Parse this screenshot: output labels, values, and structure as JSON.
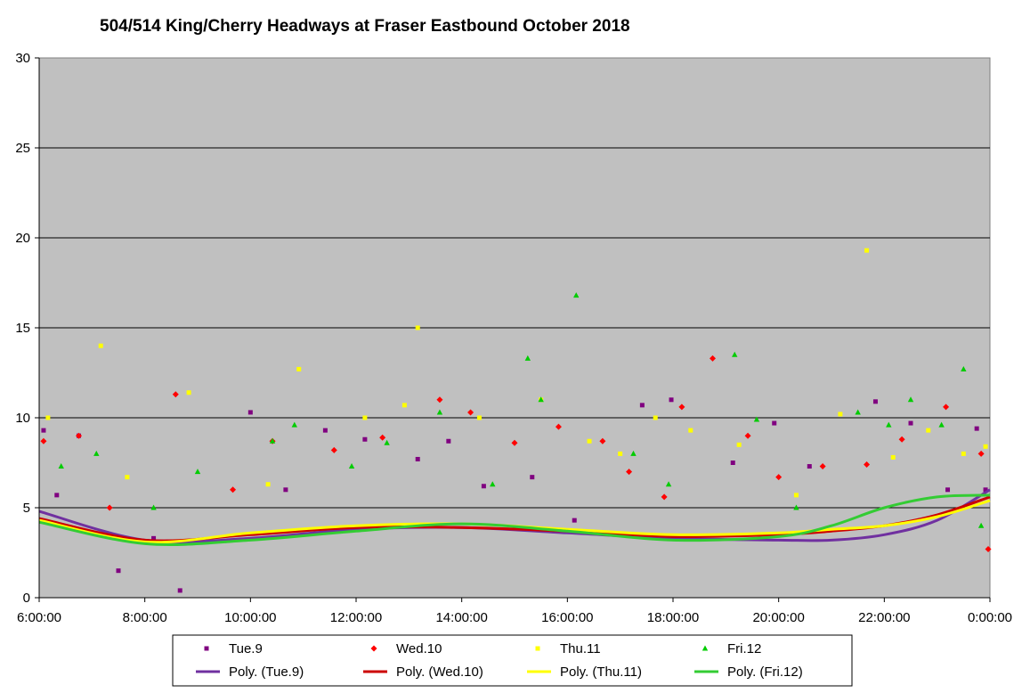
{
  "chart_data": {
    "type": "scatter",
    "title": "504/514 King/Cherry Headways at Fraser Eastbound October 2018",
    "xlabel": "",
    "ylabel": "",
    "ylim": [
      0,
      30
    ],
    "xlim": [
      "6:00:00",
      "0:00:00"
    ],
    "x_ticks": [
      "6:00:00",
      "8:00:00",
      "10:00:00",
      "12:00:00",
      "14:00:00",
      "16:00:00",
      "18:00:00",
      "20:00:00",
      "22:00:00",
      "0:00:00"
    ],
    "y_ticks": [
      "0",
      "5",
      "10",
      "15",
      "20",
      "25",
      "30"
    ],
    "grid": "horizontal",
    "background": "#c0c0c0",
    "legend_position": "bottom",
    "series": [
      {
        "name": "Tue.9",
        "marker": "square",
        "color": "#800080",
        "points": [
          [
            "6:05",
            9.3
          ],
          [
            "6:20",
            5.7
          ],
          [
            "6:45",
            9.0
          ],
          [
            "7:30",
            1.5
          ],
          [
            "7:48",
            3.2
          ],
          [
            "8:10",
            3.3
          ],
          [
            "8:40",
            0.4
          ],
          [
            "9:00",
            3.1
          ],
          [
            "10:00",
            10.3
          ],
          [
            "10:40",
            6.0
          ],
          [
            "11:25",
            9.3
          ],
          [
            "12:10",
            8.8
          ],
          [
            "13:10",
            7.7
          ],
          [
            "13:45",
            8.7
          ],
          [
            "14:25",
            6.2
          ],
          [
            "15:20",
            6.7
          ],
          [
            "16:08",
            4.3
          ],
          [
            "17:25",
            10.7
          ],
          [
            "17:58",
            11.0
          ],
          [
            "19:08",
            7.5
          ],
          [
            "19:55",
            9.7
          ],
          [
            "20:35",
            7.3
          ],
          [
            "21:50",
            10.9
          ],
          [
            "22:30",
            9.7
          ],
          [
            "23:12",
            6.0
          ],
          [
            "23:45",
            9.4
          ],
          [
            "23:55",
            6.0
          ]
        ],
        "trend": {
          "name": "Poly. (Tue.9)",
          "color": "#7030a0",
          "values": [
            [
              "6:00",
              4.8
            ],
            [
              "8:00",
              3.2
            ],
            [
              "10:00",
              3.3
            ],
            [
              "12:00",
              3.8
            ],
            [
              "14:00",
              3.9
            ],
            [
              "16:00",
              3.6
            ],
            [
              "18:00",
              3.3
            ],
            [
              "20:00",
              3.2
            ],
            [
              "21:00",
              3.2
            ],
            [
              "22:00",
              3.5
            ],
            [
              "23:00",
              4.3
            ],
            [
              "0:00",
              6.0
            ]
          ]
        }
      },
      {
        "name": "Wed.10",
        "marker": "diamond",
        "color": "#ff0000",
        "points": [
          [
            "6:05",
            8.7
          ],
          [
            "6:45",
            9.0
          ],
          [
            "7:20",
            5.0
          ],
          [
            "8:35",
            11.3
          ],
          [
            "9:40",
            6.0
          ],
          [
            "10:25",
            8.7
          ],
          [
            "11:35",
            8.2
          ],
          [
            "12:30",
            8.9
          ],
          [
            "13:35",
            11.0
          ],
          [
            "14:10",
            10.3
          ],
          [
            "15:00",
            8.6
          ],
          [
            "15:50",
            9.5
          ],
          [
            "16:40",
            8.7
          ],
          [
            "17:10",
            7.0
          ],
          [
            "17:50",
            5.6
          ],
          [
            "18:10",
            10.6
          ],
          [
            "18:45",
            13.3
          ],
          [
            "19:25",
            9.0
          ],
          [
            "20:00",
            6.7
          ],
          [
            "20:50",
            7.3
          ],
          [
            "21:40",
            7.4
          ],
          [
            "22:20",
            8.8
          ],
          [
            "23:10",
            10.6
          ],
          [
            "23:50",
            8.0
          ],
          [
            "23:58",
            2.7
          ]
        ],
        "trend": {
          "name": "Poly. (Wed.10)",
          "color": "#cc0000",
          "values": [
            [
              "6:00",
              4.4
            ],
            [
              "8:00",
              3.2
            ],
            [
              "10:00",
              3.5
            ],
            [
              "12:00",
              3.9
            ],
            [
              "14:00",
              3.9
            ],
            [
              "16:00",
              3.7
            ],
            [
              "18:00",
              3.4
            ],
            [
              "20:00",
              3.5
            ],
            [
              "21:00",
              3.7
            ],
            [
              "22:00",
              4.0
            ],
            [
              "23:00",
              4.6
            ],
            [
              "0:00",
              5.6
            ]
          ]
        }
      },
      {
        "name": "Thu.11",
        "marker": "square",
        "color": "#ffff00",
        "points": [
          [
            "6:10",
            10.0
          ],
          [
            "7:10",
            14.0
          ],
          [
            "7:40",
            6.7
          ],
          [
            "8:50",
            11.4
          ],
          [
            "10:20",
            6.3
          ],
          [
            "10:55",
            12.7
          ],
          [
            "12:10",
            10.0
          ],
          [
            "12:55",
            10.7
          ],
          [
            "13:10",
            15.0
          ],
          [
            "14:20",
            10.0
          ],
          [
            "15:30",
            11.0
          ],
          [
            "16:25",
            8.7
          ],
          [
            "17:00",
            8.0
          ],
          [
            "17:40",
            10.0
          ],
          [
            "18:20",
            9.3
          ],
          [
            "19:15",
            8.5
          ],
          [
            "20:20",
            5.7
          ],
          [
            "21:10",
            10.2
          ],
          [
            "21:40",
            19.3
          ],
          [
            "22:10",
            7.8
          ],
          [
            "22:50",
            9.3
          ],
          [
            "23:30",
            8.0
          ],
          [
            "23:55",
            8.4
          ]
        ],
        "trend": {
          "name": "Poly. (Thu.11)",
          "color": "#ffff00",
          "values": [
            [
              "6:00",
              4.3
            ],
            [
              "8:00",
              3.1
            ],
            [
              "10:00",
              3.6
            ],
            [
              "12:00",
              4.0
            ],
            [
              "14:00",
              4.1
            ],
            [
              "16:00",
              3.8
            ],
            [
              "18:00",
              3.5
            ],
            [
              "20:00",
              3.6
            ],
            [
              "21:00",
              3.8
            ],
            [
              "22:00",
              4.0
            ],
            [
              "23:00",
              4.5
            ],
            [
              "0:00",
              5.4
            ]
          ]
        }
      },
      {
        "name": "Fri.12",
        "marker": "triangle",
        "color": "#00cc00",
        "points": [
          [
            "6:25",
            7.3
          ],
          [
            "7:05",
            8.0
          ],
          [
            "8:10",
            5.0
          ],
          [
            "9:00",
            7.0
          ],
          [
            "10:25",
            8.7
          ],
          [
            "10:50",
            9.6
          ],
          [
            "11:55",
            7.3
          ],
          [
            "12:35",
            8.6
          ],
          [
            "13:35",
            10.3
          ],
          [
            "14:35",
            6.3
          ],
          [
            "15:15",
            13.3
          ],
          [
            "15:30",
            11.0
          ],
          [
            "16:10",
            16.8
          ],
          [
            "17:15",
            8.0
          ],
          [
            "17:55",
            6.3
          ],
          [
            "19:10",
            13.5
          ],
          [
            "19:35",
            9.9
          ],
          [
            "20:20",
            5.0
          ],
          [
            "21:30",
            10.3
          ],
          [
            "22:05",
            9.6
          ],
          [
            "22:30",
            11.0
          ],
          [
            "23:05",
            9.6
          ],
          [
            "23:30",
            12.7
          ],
          [
            "23:50",
            4.0
          ]
        ],
        "trend": {
          "name": "Poly. (Fri.12)",
          "color": "#33cc33",
          "values": [
            [
              "6:00",
              4.2
            ],
            [
              "8:00",
              3.0
            ],
            [
              "10:00",
              3.2
            ],
            [
              "12:00",
              3.7
            ],
            [
              "14:00",
              4.1
            ],
            [
              "16:00",
              3.7
            ],
            [
              "18:00",
              3.2
            ],
            [
              "20:00",
              3.4
            ],
            [
              "21:00",
              4.0
            ],
            [
              "22:00",
              5.0
            ],
            [
              "23:00",
              5.6
            ],
            [
              "0:00",
              5.7
            ]
          ]
        }
      }
    ]
  }
}
